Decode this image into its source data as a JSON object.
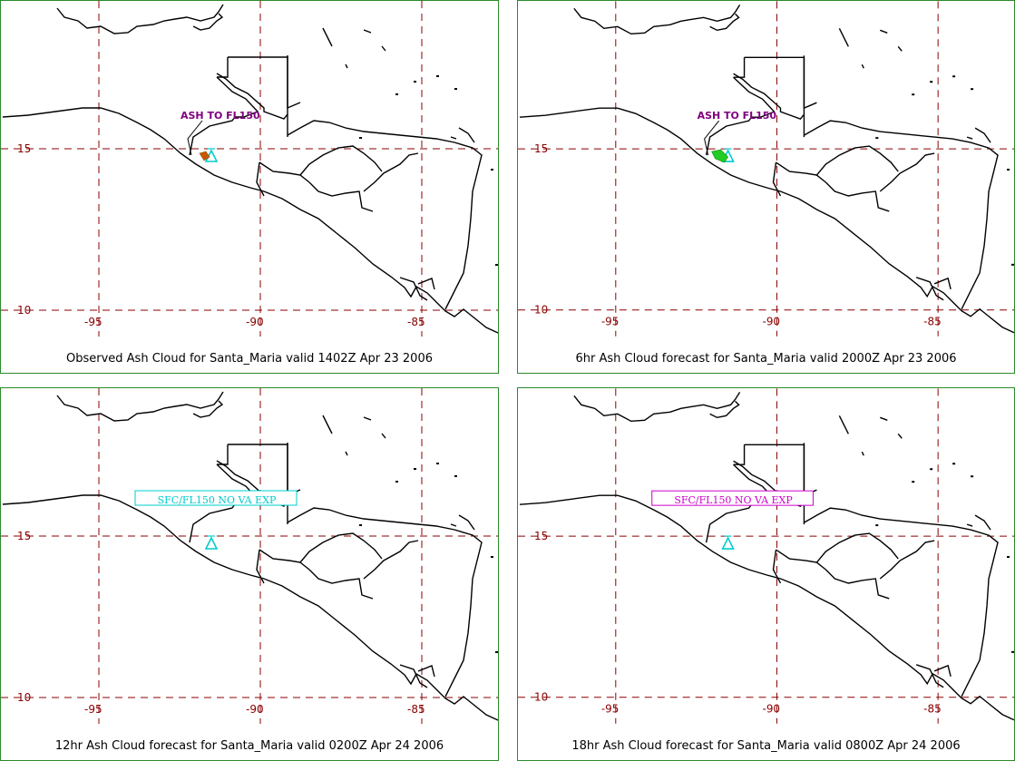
{
  "colors": {
    "grid": "#8b0000",
    "coast": "#000000",
    "panel_border": "#2a8a2a",
    "volcano": "#00cccc",
    "label_purple": "#800080",
    "box_cyan": "#00cccc",
    "box_magenta": "#cc00cc",
    "ash_observed": "#cc5500",
    "ash_forecast": "#22cc22"
  },
  "panels": [
    {
      "caption": "Observed Ash Cloud for Santa_Maria valid 1402Z Apr 23 2006",
      "lat_labels": [
        "15",
        "10"
      ],
      "lon_labels": [
        "-95",
        "-90",
        "-85"
      ],
      "ash_label": "ASH TO FL150",
      "box_label": ""
    },
    {
      "caption": "6hr Ash Cloud forecast for Santa_Maria valid 2000Z Apr 23 2006",
      "lat_labels": [
        "15",
        "10"
      ],
      "lon_labels": [
        "-95",
        "-90",
        "-85"
      ],
      "ash_label": "ASH TO FL150",
      "box_label": ""
    },
    {
      "caption": "12hr Ash Cloud forecast for Santa_Maria valid 0200Z Apr 24 2006",
      "lat_labels": [
        "15",
        "10"
      ],
      "lon_labels": [
        "-95",
        "-90",
        "-85"
      ],
      "ash_label": "",
      "box_label": "SFC/FL150 NO VA EXP"
    },
    {
      "caption": "18hr Ash Cloud forecast for Santa_Maria valid 0800Z Apr 24 2006",
      "lat_labels": [
        "15",
        "10"
      ],
      "lon_labels": [
        "-95",
        "-90",
        "-85"
      ],
      "ash_label": "",
      "box_label": "SFC/FL150 NO VA EXP"
    }
  ]
}
